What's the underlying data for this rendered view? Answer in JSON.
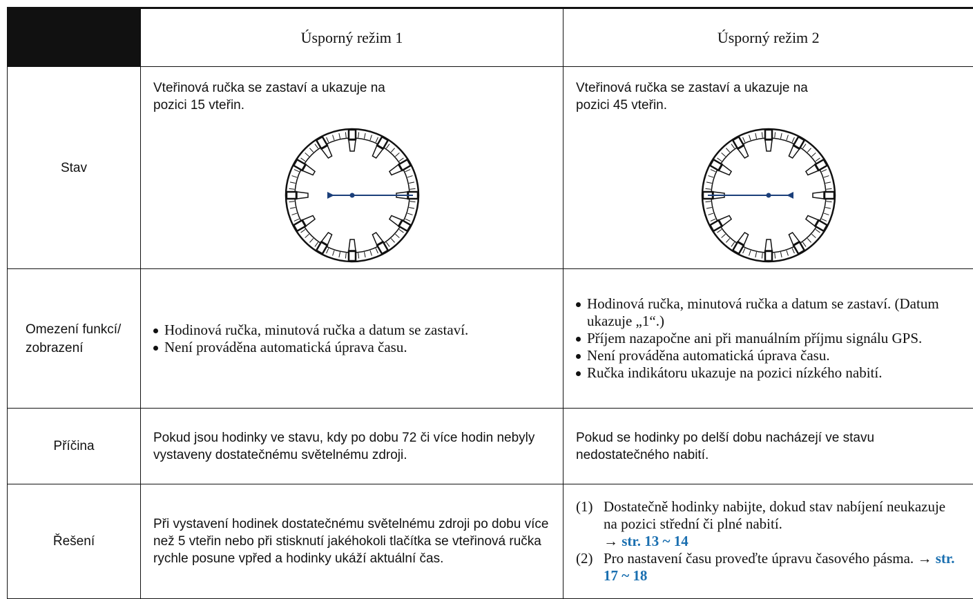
{
  "header": {
    "col1": "Úsporný režim 1",
    "col2": "Úsporný režim 2"
  },
  "rows": [
    {
      "label": "Stav",
      "col1": [
        "Vteřinová ručka se zastaví a ukazuje na",
        "pozici 15 vteřin."
      ],
      "col2": [
        "Vteřinová ručka se zastaví a ukazuje na",
        "pozici 45 vteřin."
      ]
    },
    {
      "label": "Omezení funkcí/ zobrazení",
      "col1": [
        "Hodinová ručka, minutová ručka a datum se zastaví.",
        "Není prováděna automatická úprava času."
      ],
      "col2": [
        "Hodinová ručka, minutová ručka a datum se zastaví. (Datum ukazuje „1“.)",
        "Příjem nazapočne ani při manuálním příjmu signálu GPS.",
        "Není prováděna automatická úprava času.",
        "Ručka indikátoru ukazuje na pozici nízkého nabití."
      ]
    },
    {
      "label": "Příčina",
      "col1": "Pokud jsou hodinky ve stavu, kdy po dobu 72 či více hodin nebyly vystaveny dostatečnému světelnému zdroji.",
      "col2": "Pokud se hodinky po delší dobu nacházejí ve stavu nedostatečného  nabití."
    },
    {
      "label": "Řešení",
      "col1": "Při vystavení hodinek dostatečnému světelnému zdroji po dobu více než 5 vteřin nebo při stisknutí jakéhokoli tlačítka se vteřinová ručka rychle posune vpřed a hodinky ukáží aktuální čas.",
      "col2": [
        {
          "marker": "(1)",
          "text": "Dostatečně hodinky nabijte, dokud stav nabíjení neukazuje na pozici střední či plné nabití.",
          "arrow": "→",
          "link": "str. 13 ~ 14"
        },
        {
          "marker": "(2)",
          "text": "Pro nastavení času proveďte úpravu časového pásma.",
          "arrow": "→",
          "link": "str. 17 ~ 18"
        }
      ]
    }
  ]
}
